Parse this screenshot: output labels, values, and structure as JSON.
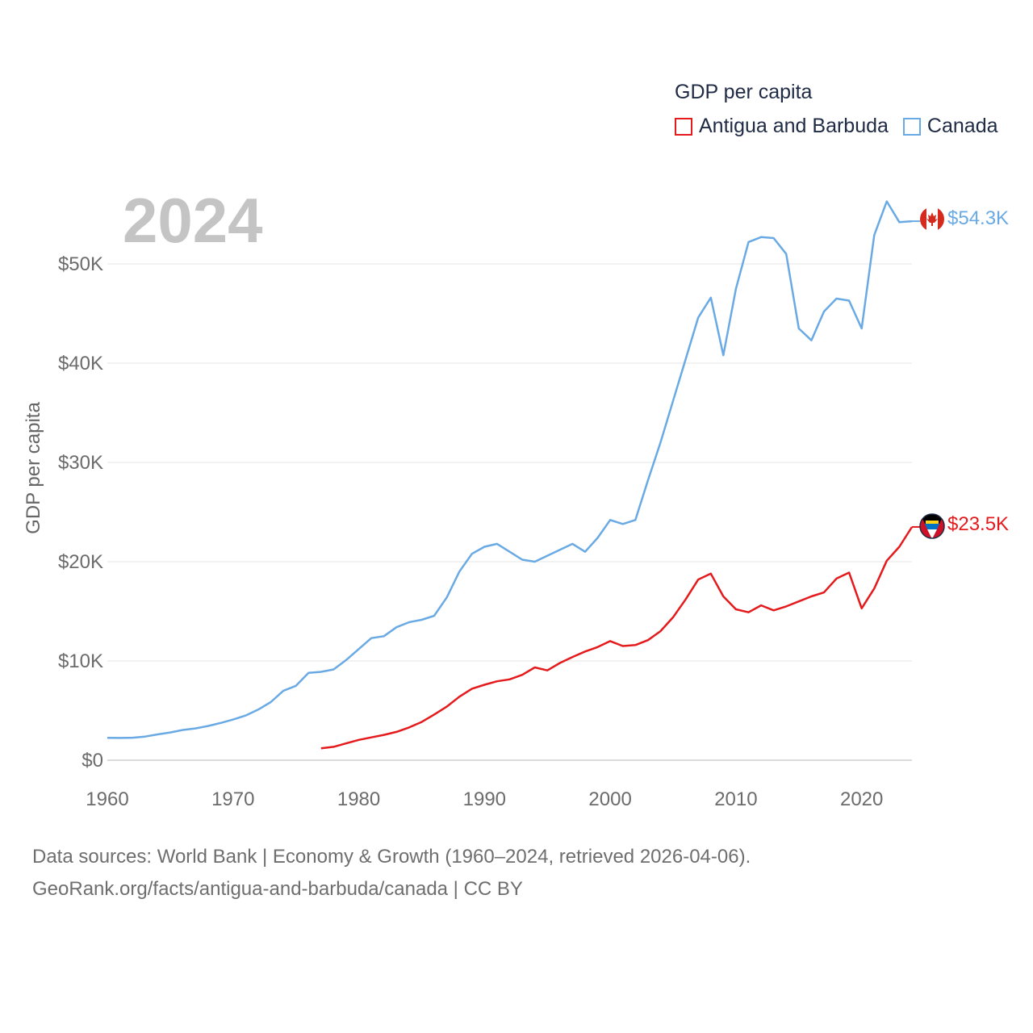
{
  "legend": {
    "title": "GDP per capita",
    "items": [
      {
        "label": "Antigua and Barbuda",
        "color": "#e41a1c"
      },
      {
        "label": "Canada",
        "color": "#6aaae4"
      }
    ]
  },
  "year_label": "2024",
  "footer": {
    "line1": "Data sources: World Bank | Economy & Growth (1960–2024, retrieved 2026-04-06).",
    "line2": "GeoRank.org/facts/antigua-and-barbuda/canada | CC BY"
  },
  "chart_data": {
    "type": "line",
    "ylabel": "GDP per capita",
    "xlabel": "",
    "xlim": [
      1960,
      2024
    ],
    "ylim": [
      0,
      56000
    ],
    "x_ticks": [
      1960,
      1970,
      1980,
      1990,
      2000,
      2010,
      2020
    ],
    "y_ticks": [
      0,
      10000,
      20000,
      30000,
      40000,
      50000
    ],
    "y_tick_labels": [
      "$0",
      "$10K",
      "$20K",
      "$30K",
      "$40K",
      "$50K"
    ],
    "grid": true,
    "series": [
      {
        "name": "Canada",
        "color": "#6aaae4",
        "end_label": "$54.3K",
        "flag": "canada-flag",
        "x": [
          1960,
          1961,
          1962,
          1963,
          1964,
          1965,
          1966,
          1967,
          1968,
          1969,
          1970,
          1971,
          1972,
          1973,
          1974,
          1975,
          1976,
          1977,
          1978,
          1979,
          1980,
          1981,
          1982,
          1983,
          1984,
          1985,
          1986,
          1987,
          1988,
          1989,
          1990,
          1991,
          1992,
          1993,
          1994,
          1995,
          1996,
          1997,
          1998,
          1999,
          2000,
          2001,
          2002,
          2003,
          2004,
          2005,
          2006,
          2007,
          2008,
          2009,
          2010,
          2011,
          2012,
          2013,
          2014,
          2015,
          2016,
          2017,
          2018,
          2019,
          2020,
          2021,
          2022,
          2023,
          2024
        ],
        "values": [
          2260,
          2240,
          2270,
          2380,
          2600,
          2800,
          3050,
          3200,
          3450,
          3750,
          4100,
          4500,
          5100,
          5850,
          7000,
          7500,
          8800,
          8900,
          9150,
          10100,
          11200,
          12300,
          12500,
          13400,
          13900,
          14150,
          14550,
          16400,
          19000,
          20800,
          21500,
          21800,
          21000,
          20200,
          20000,
          20600,
          21200,
          21800,
          21000,
          22400,
          24200,
          23800,
          24200,
          28200,
          32000,
          36200,
          40400,
          44600,
          46600,
          40800,
          47500,
          52200,
          52700,
          52600,
          51000,
          43500,
          42300,
          45200,
          46500,
          46300,
          43500,
          52900,
          56300,
          54200,
          54300
        ]
      },
      {
        "name": "Antigua and Barbuda",
        "color": "#e41a1c",
        "end_label": "$23.5K",
        "flag": "antigua-flag",
        "x": [
          1977,
          1978,
          1979,
          1980,
          1981,
          1982,
          1983,
          1984,
          1985,
          1986,
          1987,
          1988,
          1989,
          1990,
          1991,
          1992,
          1993,
          1994,
          1995,
          1996,
          1997,
          1998,
          1999,
          2000,
          2001,
          2002,
          2003,
          2004,
          2005,
          2006,
          2007,
          2008,
          2009,
          2010,
          2011,
          2012,
          2013,
          2014,
          2015,
          2016,
          2017,
          2018,
          2019,
          2020,
          2021,
          2022,
          2023,
          2024
        ],
        "values": [
          1200,
          1350,
          1700,
          2050,
          2300,
          2550,
          2850,
          3300,
          3850,
          4600,
          5400,
          6400,
          7200,
          7600,
          7950,
          8150,
          8600,
          9350,
          9050,
          9800,
          10400,
          10950,
          11400,
          12000,
          11500,
          11600,
          12100,
          13000,
          14400,
          16200,
          18200,
          18800,
          16500,
          15200,
          14900,
          15600,
          15100,
          15500,
          16000,
          16500,
          16900,
          18300,
          18900,
          15300,
          17300,
          20100,
          21500,
          23500
        ]
      }
    ]
  }
}
